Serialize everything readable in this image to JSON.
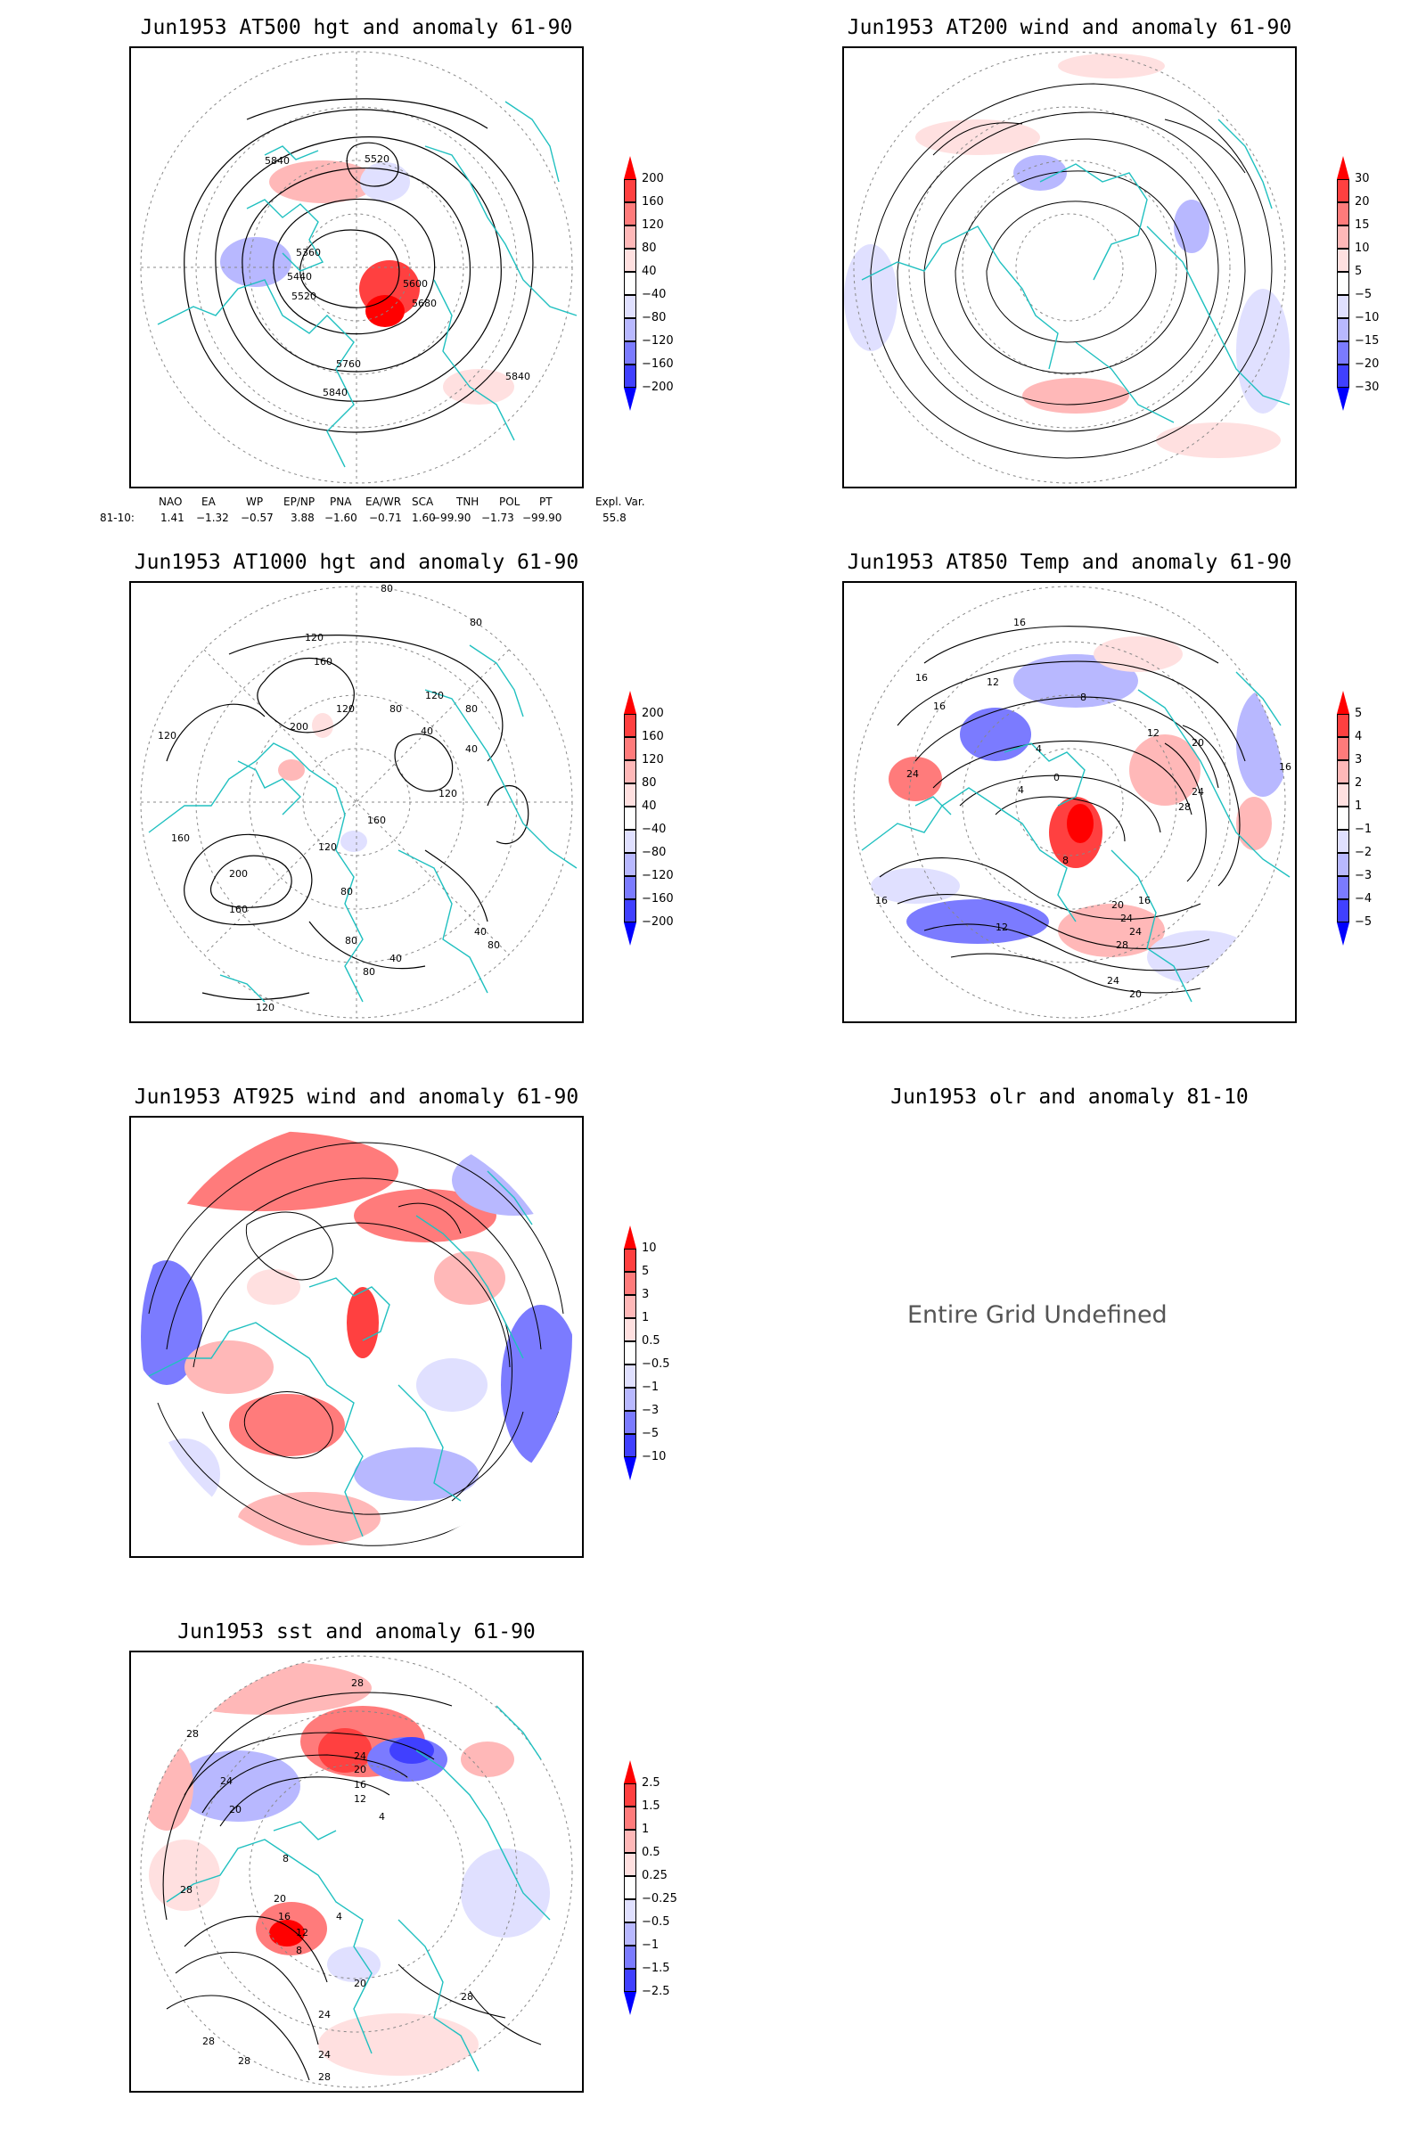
{
  "panels": [
    {
      "id": "p500",
      "title": "Jun1953 AT500 hgt and anomaly 61-90",
      "colorbar": {
        "labels": [
          "200",
          "160",
          "120",
          "80",
          "40",
          "−40",
          "−80",
          "−120",
          "−160",
          "−200"
        ],
        "colors": [
          "#ff0000",
          "#ff4040",
          "#ff7b7b",
          "#ffb8b8",
          "#ffe0e0",
          "#ffffff",
          "#e0e0ff",
          "#b8b8ff",
          "#7b7bff",
          "#4040ff",
          "#0000ff"
        ]
      },
      "contour_labels": [
        "5840",
        "5520",
        "5360",
        "5440",
        "5520",
        "5600",
        "5680",
        "5760",
        "5840",
        "5840"
      ],
      "teleconnection": {
        "headers": [
          "NAO",
          "EA",
          "WP",
          "EP/NP",
          "PNA",
          "EA/WR",
          "SCA",
          "TNH",
          "POL",
          "PT",
          "Expl. Var."
        ],
        "row_label": "81-10:",
        "values": [
          "1.41",
          "−1.32",
          "−0.57",
          "3.88",
          "−1.60",
          "−0.71",
          "1.60",
          "−99.90",
          "−1.73",
          "−99.90",
          "55.8"
        ]
      }
    },
    {
      "id": "p200",
      "title": "Jun1953 AT200 wind and anomaly 61-90",
      "colorbar": {
        "labels": [
          "30",
          "20",
          "15",
          "10",
          "5",
          "−5",
          "−10",
          "−15",
          "−20",
          "−30"
        ],
        "colors": [
          "#ff0000",
          "#ff4040",
          "#ff7b7b",
          "#ffb8b8",
          "#ffe0e0",
          "#ffffff",
          "#e0e0ff",
          "#b8b8ff",
          "#7b7bff",
          "#4040ff",
          "#0000ff"
        ]
      }
    },
    {
      "id": "p1000",
      "title": "Jun1953 AT1000 hgt and anomaly 61-90",
      "colorbar": {
        "labels": [
          "200",
          "160",
          "120",
          "80",
          "40",
          "−40",
          "−80",
          "−120",
          "−160",
          "−200"
        ],
        "colors": [
          "#ff0000",
          "#ff4040",
          "#ff7b7b",
          "#ffb8b8",
          "#ffe0e0",
          "#ffffff",
          "#e0e0ff",
          "#b8b8ff",
          "#7b7bff",
          "#4040ff",
          "#0000ff"
        ]
      },
      "contour_labels": [
        "80",
        "80",
        "120",
        "160",
        "200",
        "120",
        "120",
        "120",
        "80",
        "40",
        "40",
        "80",
        "120",
        "160",
        "200",
        "160",
        "120",
        "80",
        "40",
        "120",
        "80",
        "40",
        "80",
        "80",
        "160"
      ]
    },
    {
      "id": "p850",
      "title": "Jun1953 AT850 Temp and anomaly 61-90",
      "colorbar": {
        "labels": [
          "5",
          "4",
          "3",
          "2",
          "1",
          "−1",
          "−2",
          "−3",
          "−4",
          "−5"
        ],
        "colors": [
          "#ff0000",
          "#ff4040",
          "#ff7b7b",
          "#ffb8b8",
          "#ffe0e0",
          "#ffffff",
          "#e0e0ff",
          "#b8b8ff",
          "#7b7bff",
          "#4040ff",
          "#0000ff"
        ]
      },
      "contour_labels": [
        "16",
        "16",
        "12",
        "16",
        "8",
        "12",
        "20",
        "24",
        "24",
        "4",
        "0",
        "4",
        "8",
        "28",
        "16",
        "16",
        "12",
        "24",
        "20",
        "24",
        "28",
        "24",
        "20",
        "16"
      ]
    },
    {
      "id": "p925",
      "title": "Jun1953 AT925 wind and anomaly 61-90",
      "colorbar": {
        "labels": [
          "10",
          "5",
          "3",
          "1",
          "0.5",
          "−0.5",
          "−1",
          "−3",
          "−5",
          "−10"
        ],
        "colors": [
          "#ff0000",
          "#ff4040",
          "#ff7b7b",
          "#ffb8b8",
          "#ffe0e0",
          "#ffffff",
          "#e0e0ff",
          "#b8b8ff",
          "#7b7bff",
          "#4040ff",
          "#0000ff"
        ]
      }
    },
    {
      "id": "polr",
      "title": "Jun1953 olr and anomaly 81-10",
      "message": "Entire Grid Undefined"
    },
    {
      "id": "psst",
      "title": "Jun1953 sst and anomaly 61-90",
      "colorbar": {
        "labels": [
          "2.5",
          "1.5",
          "1",
          "0.5",
          "0.25",
          "−0.25",
          "−0.5",
          "−1",
          "−1.5",
          "−2.5"
        ],
        "colors": [
          "#ff0000",
          "#ff4040",
          "#ff7b7b",
          "#ffb8b8",
          "#ffe0e0",
          "#ffffff",
          "#e0e0ff",
          "#b8b8ff",
          "#7b7bff",
          "#4040ff",
          "#0000ff"
        ]
      },
      "contour_labels": [
        "28",
        "28",
        "24",
        "20",
        "24",
        "20",
        "16",
        "12",
        "8",
        "4",
        "28",
        "20",
        "16",
        "12",
        "8",
        "4",
        "20",
        "24",
        "28",
        "28",
        "28",
        "24",
        "28"
      ]
    }
  ]
}
